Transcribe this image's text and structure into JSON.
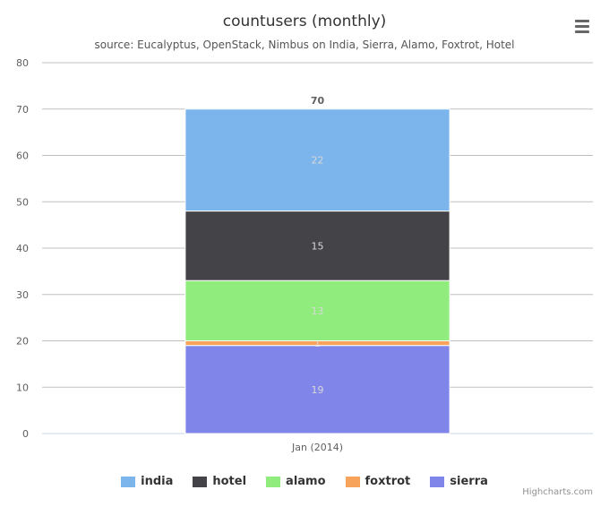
{
  "chart_data": {
    "type": "bar",
    "stacked": true,
    "title": "countusers (monthly)",
    "subtitle": "source: Eucalyptus, OpenStack, Nimbus on India, Sierra, Alamo, Foxtrot, Hotel",
    "categories": [
      "Jan (2014)"
    ],
    "ylim": [
      0,
      80
    ],
    "yticks": [
      0,
      10,
      20,
      30,
      40,
      50,
      60,
      70,
      80
    ],
    "grid": true,
    "legend_position": "bottom-center",
    "total_labels": [
      "70"
    ],
    "series": [
      {
        "name": "india",
        "values": [
          22
        ],
        "color": "#7cb5ec",
        "label": "22"
      },
      {
        "name": "hotel",
        "values": [
          15
        ],
        "color": "#434348",
        "label": "15"
      },
      {
        "name": "alamo",
        "values": [
          13
        ],
        "color": "#90ed7d",
        "label": "13"
      },
      {
        "name": "foxtrot",
        "values": [
          1
        ],
        "color": "#f7a35c",
        "label": "1"
      },
      {
        "name": "sierra",
        "values": [
          19
        ],
        "color": "#8085e9",
        "label": "19"
      }
    ]
  },
  "menu_icon": "hamburger-menu-icon",
  "credits": "Highcharts.com"
}
